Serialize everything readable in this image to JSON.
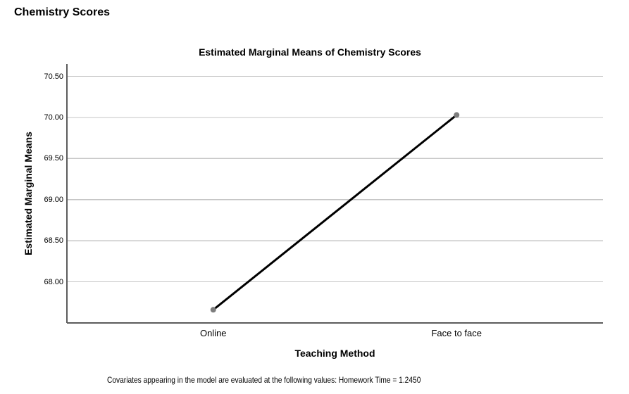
{
  "heading": {
    "text": "Chemistry Scores"
  },
  "chart_data": {
    "type": "line",
    "title": "Estimated Marginal Means of Chemistry Scores",
    "xlabel": "Teaching Method",
    "ylabel": "Estimated Marginal Means",
    "categories": [
      "Online",
      "Face to face"
    ],
    "series": [
      {
        "name": "Estimated Marginal Means of Chemistry Scores",
        "values": [
          67.66,
          70.03
        ]
      }
    ],
    "yticks": [
      70.5,
      70.0,
      69.5,
      69.0,
      68.5,
      68.0
    ],
    "ylim": [
      67.5,
      70.65
    ],
    "grid": "horizontal",
    "legend": "none",
    "footnote": "Covariates appearing in the model are evaluated at the following values: Homework Time = 1.2450",
    "colors": {
      "line": "#000000",
      "marker": "#7d7d7d",
      "gridline": "#c6c6c6",
      "axis": "#5c5c5c",
      "background": "#ffffff"
    }
  }
}
